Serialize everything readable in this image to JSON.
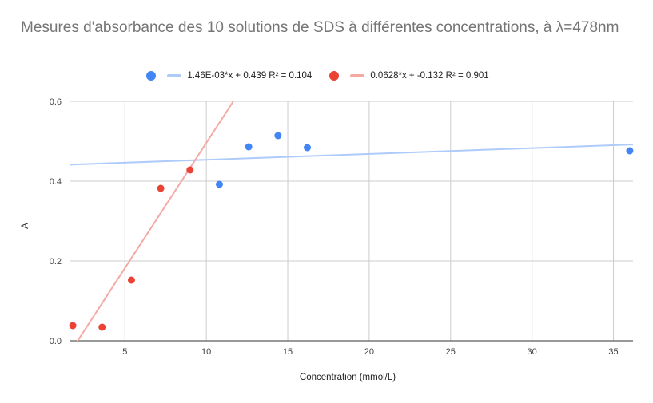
{
  "chart_data": {
    "type": "scatter",
    "title": "Mesures d'absorbance des 10 solutions de SDS à différentes concentrations, à λ=478nm",
    "xlabel": "Concentration (mmol/L)",
    "ylabel": "A",
    "xlim": [
      1.6,
      36.2
    ],
    "ylim": [
      0,
      0.6
    ],
    "xticks": [
      5,
      10,
      15,
      20,
      25,
      30,
      35
    ],
    "xtick_labels": [
      "5",
      "10",
      "15",
      "20",
      "25",
      "30",
      "35"
    ],
    "yticks": [
      0,
      0.2,
      0.4,
      0.6
    ],
    "ytick_labels": [
      "0.0",
      "0.2",
      "0.4",
      "0.6"
    ],
    "grid": true,
    "legend_position": "top",
    "series": [
      {
        "color": "#4285f4",
        "trend_color": "#aecbfa",
        "trend_label": "1.46E-03*x + 0.439 R² = 0.104",
        "slope": 0.00146,
        "intercept": 0.439,
        "x": [
          10.8,
          12.6,
          14.4,
          16.2,
          36.0
        ],
        "y": [
          0.392,
          0.486,
          0.514,
          0.484,
          0.476
        ]
      },
      {
        "color": "#ea4335",
        "trend_color": "#f4aaa4",
        "trend_label": "0.0628*x + -0.132 R² = 0.901",
        "slope": 0.0628,
        "intercept": -0.132,
        "x": [
          1.8,
          3.6,
          5.4,
          7.2,
          9.0
        ],
        "y": [
          0.038,
          0.034,
          0.152,
          0.382,
          0.428
        ]
      }
    ]
  }
}
